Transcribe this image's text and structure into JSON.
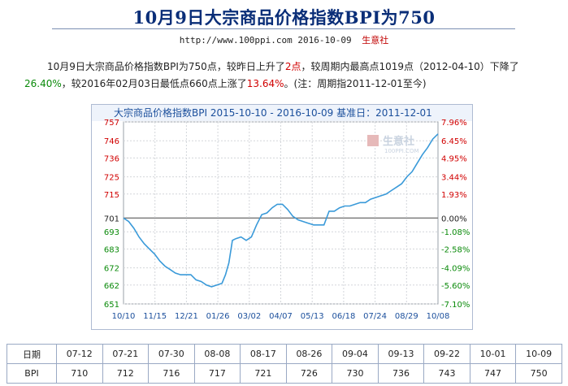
{
  "page": {
    "title": "10月9日大宗商品价格指数BPI为750",
    "url": "http://www.100ppi.com",
    "date": "2016-10-09",
    "source": "生意社"
  },
  "summary": {
    "p1": "10月9日大宗商品价格指数BPI为750点，较昨日上升了",
    "up_points": "2点",
    "p2": "，较周期内最高点1019点（2012-04-10）下降了",
    "drop_pct": "26.40%",
    "p3": "，较2016年02月03日最低点660点上涨了",
    "rise_pct": "13.64%",
    "p4": "。(注：周期指2011-12-01至今)"
  },
  "chart_data": {
    "type": "line",
    "title": "大宗商品价格指数BPI 2015-10-10 - 2016-10-09    基准日：2011-12-01",
    "watermark": "生意社",
    "watermark_url": "100PPI.COM",
    "baseline": 701,
    "ylim": [
      651,
      757
    ],
    "yticks_left": [
      "757",
      "746",
      "736",
      "725",
      "715",
      "701",
      "693",
      "683",
      "672",
      "662",
      "651"
    ],
    "yticks_right": [
      "7.96%",
      "6.45%",
      "4.95%",
      "3.44%",
      "1.93%",
      "0.00%",
      "-1.08%",
      "-2.58%",
      "-4.09%",
      "-5.60%",
      "-7.10%"
    ],
    "xticks": [
      "10/10",
      "11/15",
      "12/21",
      "01/26",
      "03/02",
      "04/07",
      "05/13",
      "06/18",
      "07/24",
      "08/29",
      "10/08"
    ],
    "series": [
      {
        "x": [
          0,
          6,
          12,
          18,
          24,
          30,
          36,
          42,
          48,
          54,
          60,
          66,
          72,
          78,
          84,
          90,
          96,
          102,
          108,
          114,
          118,
          122,
          126,
          130,
          136,
          142,
          148,
          154,
          160,
          166,
          172,
          178,
          184,
          190,
          196,
          202,
          208,
          214,
          220,
          226,
          232,
          238,
          244,
          250,
          256,
          262,
          268,
          274,
          280,
          286,
          292,
          298,
          304,
          310,
          316,
          322,
          328,
          334,
          340,
          346,
          352,
          358,
          364
        ],
        "values": [
          701,
          699,
          695,
          690,
          686,
          683,
          680,
          676,
          673,
          671,
          669,
          668,
          668,
          668,
          665,
          664,
          662,
          661,
          662,
          663,
          668,
          675,
          688,
          689,
          690,
          688,
          690,
          697,
          703,
          704,
          707,
          709,
          709,
          706,
          702,
          700,
          699,
          698,
          697,
          697,
          697,
          705,
          705,
          707,
          708,
          708,
          709,
          710,
          710,
          712,
          713,
          714,
          715,
          717,
          719,
          721,
          725,
          728,
          733,
          738,
          742,
          747,
          750
        ]
      }
    ]
  },
  "history": {
    "row_label_date": "日期",
    "row_label_bpi": "BPI",
    "dates": [
      "07-12",
      "07-21",
      "07-30",
      "08-08",
      "08-17",
      "08-26",
      "09-04",
      "09-13",
      "09-22",
      "10-01",
      "10-09"
    ],
    "values": [
      "710",
      "712",
      "716",
      "717",
      "721",
      "726",
      "730",
      "736",
      "743",
      "747",
      "750"
    ]
  }
}
